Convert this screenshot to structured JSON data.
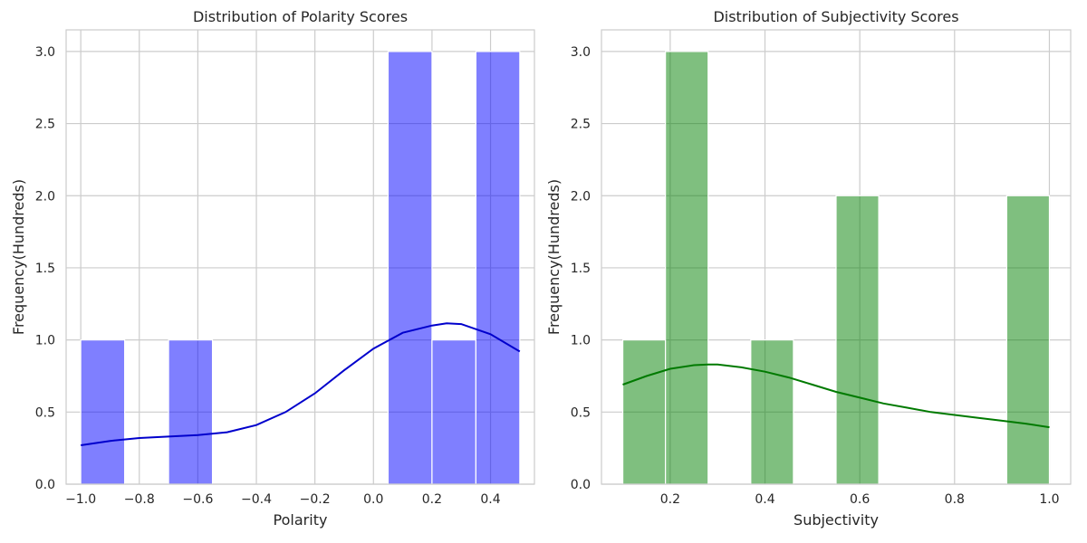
{
  "chart_data": [
    {
      "type": "bar",
      "title": "Distribution of Polarity Scores",
      "xlabel": "Polarity",
      "ylabel": "Frequency(Hundreds)",
      "xlim": [
        -1.05,
        0.55
      ],
      "ylim": [
        0,
        3.15
      ],
      "grid": true,
      "bar_color": "#0000ff",
      "kde_color": "#0000cc",
      "x_ticks": [
        -1.0,
        -0.8,
        -0.6,
        -0.4,
        -0.2,
        0.0,
        0.2,
        0.4
      ],
      "x_tick_labels": [
        "−1.0",
        "−0.8",
        "−0.6",
        "−0.4",
        "−0.2",
        "0.0",
        "0.2",
        "0.4"
      ],
      "y_ticks": [
        0,
        0.5,
        1.0,
        1.5,
        2.0,
        2.5,
        3.0
      ],
      "y_tick_labels": [
        "0.0",
        "0.5",
        "1.0",
        "1.5",
        "2.0",
        "2.5",
        "3.0"
      ],
      "bins": [
        {
          "x0": -1.0,
          "x1": -0.85,
          "value": 1
        },
        {
          "x0": -0.85,
          "x1": -0.7,
          "value": 0
        },
        {
          "x0": -0.7,
          "x1": -0.55,
          "value": 1
        },
        {
          "x0": -0.55,
          "x1": -0.4,
          "value": 0
        },
        {
          "x0": -0.4,
          "x1": -0.25,
          "value": 0
        },
        {
          "x0": -0.25,
          "x1": -0.1,
          "value": 0
        },
        {
          "x0": -0.1,
          "x1": 0.05,
          "value": 0
        },
        {
          "x0": 0.05,
          "x1": 0.2,
          "value": 3
        },
        {
          "x0": 0.2,
          "x1": 0.35,
          "value": 1
        },
        {
          "x0": 0.35,
          "x1": 0.5,
          "value": 3
        }
      ],
      "kde": [
        [
          -1.0,
          0.27
        ],
        [
          -0.9,
          0.3
        ],
        [
          -0.8,
          0.32
        ],
        [
          -0.7,
          0.33
        ],
        [
          -0.6,
          0.34
        ],
        [
          -0.5,
          0.36
        ],
        [
          -0.4,
          0.41
        ],
        [
          -0.3,
          0.5
        ],
        [
          -0.2,
          0.63
        ],
        [
          -0.1,
          0.79
        ],
        [
          0.0,
          0.94
        ],
        [
          0.1,
          1.05
        ],
        [
          0.2,
          1.1
        ],
        [
          0.25,
          1.115
        ],
        [
          0.3,
          1.11
        ],
        [
          0.4,
          1.04
        ],
        [
          0.5,
          0.92
        ]
      ]
    },
    {
      "type": "bar",
      "title": "Distribution of Subjectivity Scores",
      "xlabel": "Subjectivity",
      "ylabel": "Frequency(Hundreds)",
      "xlim": [
        0.055,
        1.045
      ],
      "ylim": [
        0,
        3.15
      ],
      "grid": true,
      "bar_color": "#008000",
      "kde_color": "#007a00",
      "x_ticks": [
        0.2,
        0.4,
        0.6,
        0.8,
        1.0
      ],
      "x_tick_labels": [
        "0.2",
        "0.4",
        "0.6",
        "0.8",
        "1.0"
      ],
      "y_ticks": [
        0,
        0.5,
        1.0,
        1.5,
        2.0,
        2.5,
        3.0
      ],
      "y_tick_labels": [
        "0.0",
        "0.5",
        "1.0",
        "1.5",
        "2.0",
        "2.5",
        "3.0"
      ],
      "bins": [
        {
          "x0": 0.1,
          "x1": 0.19,
          "value": 1
        },
        {
          "x0": 0.19,
          "x1": 0.28,
          "value": 3
        },
        {
          "x0": 0.28,
          "x1": 0.37,
          "value": 0
        },
        {
          "x0": 0.37,
          "x1": 0.46,
          "value": 1
        },
        {
          "x0": 0.46,
          "x1": 0.55,
          "value": 0
        },
        {
          "x0": 0.55,
          "x1": 0.64,
          "value": 2
        },
        {
          "x0": 0.64,
          "x1": 0.73,
          "value": 0
        },
        {
          "x0": 0.73,
          "x1": 0.82,
          "value": 0
        },
        {
          "x0": 0.82,
          "x1": 0.91,
          "value": 0
        },
        {
          "x0": 0.91,
          "x1": 1.0,
          "value": 2
        }
      ],
      "kde": [
        [
          0.1,
          0.69
        ],
        [
          0.15,
          0.75
        ],
        [
          0.2,
          0.8
        ],
        [
          0.25,
          0.825
        ],
        [
          0.28,
          0.83
        ],
        [
          0.3,
          0.83
        ],
        [
          0.35,
          0.81
        ],
        [
          0.4,
          0.78
        ],
        [
          0.45,
          0.74
        ],
        [
          0.5,
          0.69
        ],
        [
          0.55,
          0.64
        ],
        [
          0.6,
          0.6
        ],
        [
          0.65,
          0.56
        ],
        [
          0.7,
          0.53
        ],
        [
          0.75,
          0.5
        ],
        [
          0.8,
          0.48
        ],
        [
          0.85,
          0.46
        ],
        [
          0.9,
          0.44
        ],
        [
          0.95,
          0.42
        ],
        [
          1.0,
          0.395
        ]
      ]
    }
  ]
}
